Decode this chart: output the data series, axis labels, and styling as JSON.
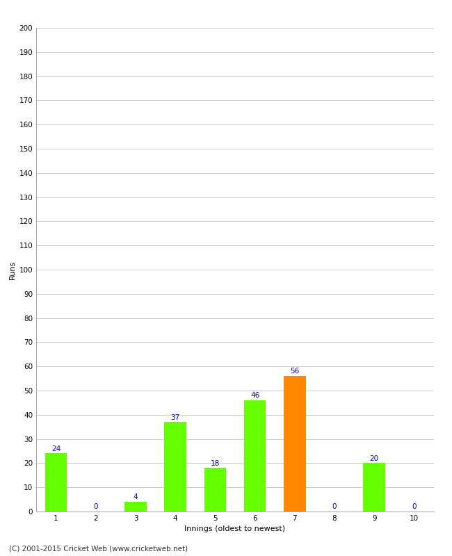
{
  "categories": [
    "1",
    "2",
    "3",
    "4",
    "5",
    "6",
    "7",
    "8",
    "9",
    "10"
  ],
  "values": [
    24,
    0,
    4,
    37,
    18,
    46,
    56,
    0,
    20,
    0
  ],
  "bar_colors": [
    "#66ff00",
    "#66ff00",
    "#66ff00",
    "#66ff00",
    "#66ff00",
    "#66ff00",
    "#ff8800",
    "#66ff00",
    "#66ff00",
    "#66ff00"
  ],
  "xlabel": "Innings (oldest to newest)",
  "ylabel": "Runs",
  "ylim": [
    0,
    200
  ],
  "yticks": [
    0,
    10,
    20,
    30,
    40,
    50,
    60,
    70,
    80,
    90,
    100,
    110,
    120,
    130,
    140,
    150,
    160,
    170,
    180,
    190,
    200
  ],
  "label_color": "#0000cc",
  "label_fontsize": 7.5,
  "axis_fontsize": 8,
  "tick_fontsize": 7.5,
  "footer": "(C) 2001-2015 Cricket Web (www.cricketweb.net)",
  "footer_fontsize": 7.5,
  "background_color": "#ffffff",
  "grid_color": "#cccccc",
  "bar_width": 0.55
}
